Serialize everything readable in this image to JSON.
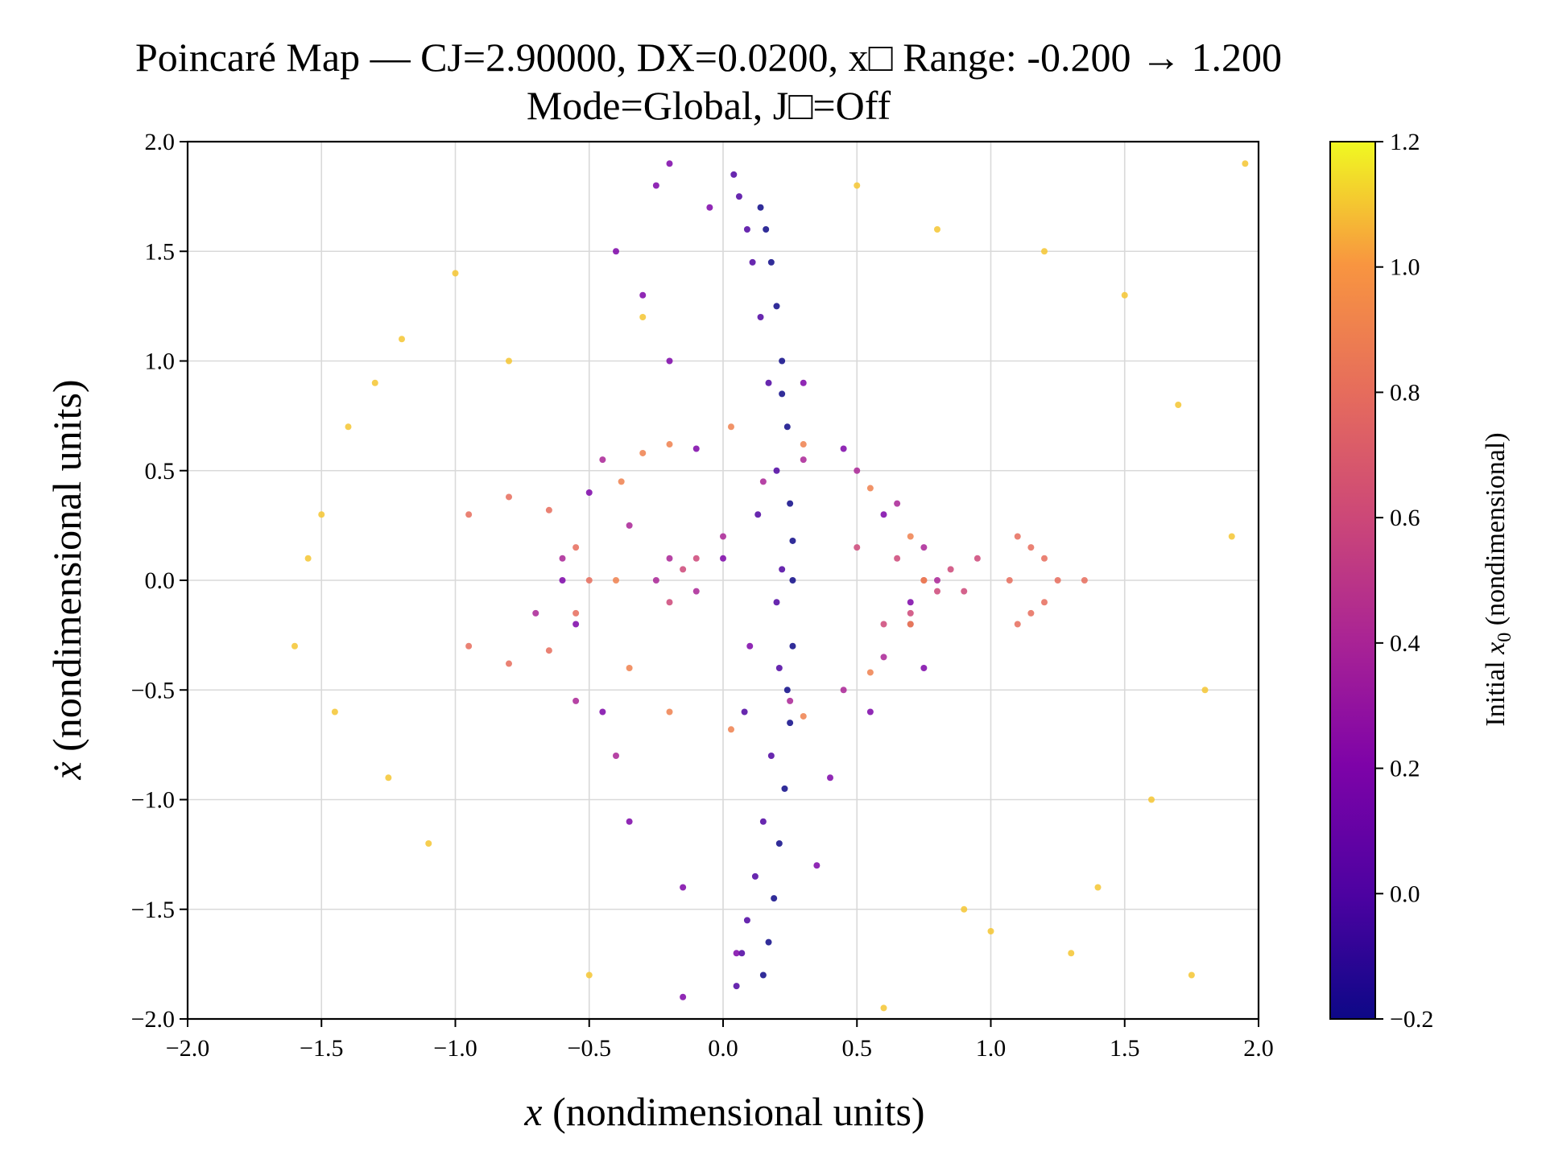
{
  "chart_data": {
    "type": "scatter",
    "title_lines": [
      "Poincaré Map — CJ=2.90000, DX=0.0200, x□ Range: -0.200 → 1.200",
      "Mode=Global, J□=Off"
    ],
    "xlabel_var": "x",
    "xlabel_rest": " (nondimensional units)",
    "ylabel_var": "ẋ",
    "ylabel_rest": " (nondimensional units)",
    "xlim": [
      -2.0,
      2.0
    ],
    "ylim": [
      -2.0,
      2.0
    ],
    "xticks": [
      -2.0,
      -1.5,
      -1.0,
      -0.5,
      0.0,
      0.5,
      1.0,
      1.5,
      2.0
    ],
    "xtick_labels": [
      "−2.0",
      "−1.5",
      "−1.0",
      "−0.5",
      "0.0",
      "0.5",
      "1.0",
      "1.5",
      "2.0"
    ],
    "yticks": [
      -2.0,
      -1.5,
      -1.0,
      -0.5,
      0.0,
      0.5,
      1.0,
      1.5,
      2.0
    ],
    "ytick_labels": [
      "−2.0",
      "−1.5",
      "−1.0",
      "−0.5",
      "0.0",
      "0.5",
      "1.0",
      "1.5",
      "2.0"
    ],
    "grid": true,
    "colormap": "plasma",
    "colorbar": {
      "label_prefix": "Initial ",
      "label_var": "x",
      "label_sub": "0",
      "label_suffix": " (nondimensional)",
      "range": [
        -0.2,
        1.2
      ],
      "ticks": [
        -0.2,
        0.0,
        0.2,
        0.4,
        0.6,
        0.8,
        1.0,
        1.2
      ],
      "tick_labels": [
        "−0.2",
        "0.0",
        "0.2",
        "0.4",
        "0.6",
        "0.8",
        "1.0",
        "1.2"
      ]
    },
    "series": [
      {
        "x0": -0.2,
        "x": [
          0.26,
          0.25,
          0.24,
          0.22,
          0.2,
          0.18,
          0.16,
          0.14,
          0.26,
          0.25,
          0.23,
          0.21,
          0.19,
          0.17,
          0.15,
          0.26,
          0.24,
          0.22
        ],
        "y": [
          0.0,
          0.35,
          0.7,
          1.0,
          1.25,
          1.45,
          1.6,
          1.7,
          -0.3,
          -0.65,
          -0.95,
          -1.2,
          -1.45,
          -1.65,
          -1.8,
          0.18,
          -0.5,
          0.85
        ]
      },
      {
        "x0": 0.0,
        "x": [
          0.22,
          0.2,
          0.17,
          0.14,
          0.11,
          0.09,
          0.06,
          0.04,
          0.21,
          0.18,
          0.15,
          0.12,
          0.09,
          0.07,
          0.05,
          0.2,
          0.13,
          0.08
        ],
        "y": [
          0.05,
          0.5,
          0.9,
          1.2,
          1.45,
          1.6,
          1.75,
          1.85,
          -0.4,
          -0.8,
          -1.1,
          -1.35,
          -1.55,
          -1.7,
          -1.85,
          -0.1,
          0.3,
          -0.6
        ]
      },
      {
        "x0": 0.2,
        "x": [
          0.0,
          -0.1,
          -0.2,
          -0.3,
          -0.4,
          -0.5,
          -0.45,
          -0.35,
          -0.15,
          0.05,
          -0.05,
          -0.25,
          -0.55,
          -0.6,
          0.3,
          0.45,
          0.6,
          0.7,
          0.75,
          0.55,
          0.4,
          0.35,
          -0.15,
          -0.2,
          0.1
        ],
        "y": [
          0.1,
          0.6,
          1.0,
          1.3,
          1.5,
          0.4,
          -0.6,
          -1.1,
          -1.4,
          -1.7,
          1.7,
          1.8,
          -0.2,
          0.0,
          0.9,
          0.6,
          0.3,
          -0.1,
          -0.4,
          -0.6,
          -0.9,
          -1.3,
          -1.9,
          1.9,
          -0.3
        ]
      },
      {
        "x0": 0.4,
        "x": [
          -0.25,
          -0.35,
          -0.45,
          -0.6,
          -0.7,
          -0.55,
          -0.4,
          0.0,
          0.15,
          0.3,
          0.5,
          0.65,
          0.75,
          0.8,
          0.7,
          0.6,
          0.45,
          0.25,
          -0.1,
          -0.2
        ],
        "y": [
          0.0,
          0.25,
          0.55,
          0.1,
          -0.15,
          -0.55,
          -0.8,
          0.2,
          0.45,
          0.55,
          0.5,
          0.35,
          0.15,
          0.0,
          -0.2,
          -0.35,
          -0.5,
          -0.55,
          -0.05,
          0.1
        ]
      },
      {
        "x0": 0.6,
        "x": [
          -0.15,
          -0.2,
          -0.1,
          0.5,
          0.65,
          0.75,
          0.8,
          0.7,
          0.6,
          0.85,
          0.9,
          0.95
        ],
        "y": [
          0.05,
          -0.1,
          0.1,
          0.15,
          0.1,
          0.0,
          -0.05,
          -0.15,
          -0.2,
          0.05,
          -0.05,
          0.1
        ]
      },
      {
        "x0": 0.8,
        "x": [
          1.1,
          1.15,
          1.2,
          1.25,
          1.2,
          1.15,
          1.1,
          1.07,
          1.35,
          -0.95,
          -0.8,
          -0.65,
          -0.55,
          -0.5,
          -0.55,
          -0.65,
          -0.8,
          -0.95
        ],
        "y": [
          0.2,
          0.15,
          0.1,
          0.0,
          -0.1,
          -0.15,
          -0.2,
          0.0,
          0.0,
          0.3,
          0.38,
          0.32,
          0.15,
          0.0,
          -0.15,
          -0.32,
          -0.38,
          -0.3
        ]
      },
      {
        "x0": 0.9,
        "x": [
          0.03,
          0.3,
          0.55,
          0.7,
          0.75,
          0.7,
          0.55,
          0.3,
          0.03,
          -0.2,
          -0.35,
          -0.4,
          -0.38,
          -0.3,
          -0.2
        ],
        "y": [
          0.7,
          0.62,
          0.42,
          0.2,
          0.0,
          -0.2,
          -0.42,
          -0.62,
          -0.68,
          -0.6,
          -0.4,
          0.0,
          0.45,
          0.58,
          0.62
        ]
      },
      {
        "x0": 1.1,
        "x": [
          -1.5,
          -1.6,
          -1.4,
          -1.3,
          -1.2,
          -1.0,
          -1.1,
          -1.45,
          -1.55,
          -1.25,
          1.5,
          1.7,
          1.9,
          1.8,
          1.6,
          1.4,
          1.75,
          1.95,
          0.5,
          0.8,
          1.0,
          1.3,
          0.6,
          0.9,
          1.2,
          -0.3,
          -0.5,
          -0.8
        ],
        "y": [
          0.3,
          -0.3,
          0.7,
          0.9,
          1.1,
          1.4,
          -1.2,
          -0.6,
          0.1,
          -0.9,
          1.3,
          0.8,
          0.2,
          -0.5,
          -1.0,
          -1.4,
          -1.8,
          1.9,
          1.8,
          1.6,
          -1.6,
          -1.7,
          -1.95,
          -1.5,
          1.5,
          1.2,
          -1.8,
          1.0
        ]
      }
    ]
  }
}
